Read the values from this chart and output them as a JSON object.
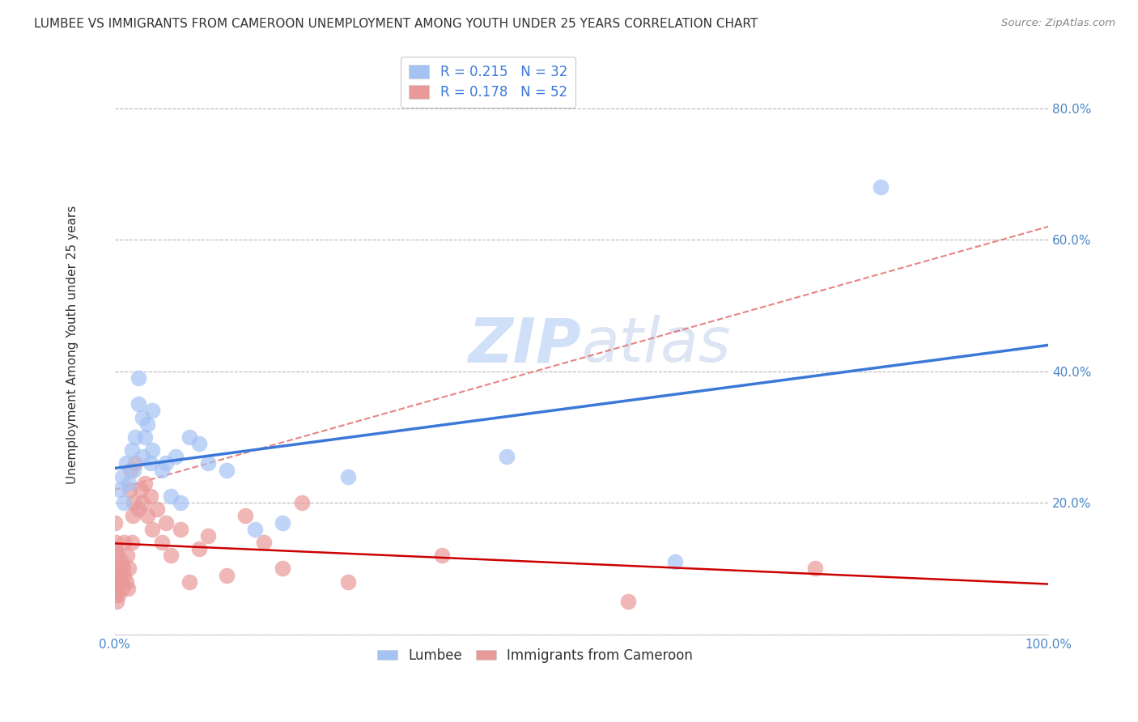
{
  "title": "LUMBEE VS IMMIGRANTS FROM CAMEROON UNEMPLOYMENT AMONG YOUTH UNDER 25 YEARS CORRELATION CHART",
  "source": "Source: ZipAtlas.com",
  "ylabel": "Unemployment Among Youth under 25 years",
  "xlim": [
    0,
    1.0
  ],
  "ylim": [
    0,
    0.88
  ],
  "yticks": [
    0.0,
    0.2,
    0.4,
    0.6,
    0.8
  ],
  "ytick_labels": [
    "",
    "20.0%",
    "40.0%",
    "60.0%",
    "80.0%"
  ],
  "xticks": [
    0.0,
    0.25,
    0.5,
    0.75,
    1.0
  ],
  "xtick_labels": [
    "0.0%",
    "",
    "",
    "",
    "100.0%"
  ],
  "lumbee_R": 0.215,
  "lumbee_N": 32,
  "cameroon_R": 0.178,
  "cameroon_N": 52,
  "lumbee_color": "#a4c2f4",
  "cameroon_color": "#ea9999",
  "lumbee_line_color": "#3c78d8",
  "cameroon_line_color": "#cc0000",
  "cameroon_dash_color": "#e06666",
  "watermark_color": "#c9daf8",
  "background_color": "#ffffff",
  "grid_color": "#b7b7b7",
  "title_fontsize": 11,
  "axis_label_fontsize": 11,
  "tick_fontsize": 11,
  "legend_fontsize": 12,
  "lumbee_x": [
    0.005,
    0.008,
    0.01,
    0.012,
    0.015,
    0.018,
    0.02,
    0.022,
    0.025,
    0.025,
    0.03,
    0.03,
    0.032,
    0.035,
    0.038,
    0.04,
    0.04,
    0.05,
    0.055,
    0.06,
    0.065,
    0.07,
    0.08,
    0.09,
    0.1,
    0.12,
    0.15,
    0.18,
    0.25,
    0.42,
    0.6,
    0.82
  ],
  "lumbee_y": [
    0.22,
    0.24,
    0.2,
    0.26,
    0.23,
    0.28,
    0.25,
    0.3,
    0.35,
    0.39,
    0.27,
    0.33,
    0.3,
    0.32,
    0.26,
    0.28,
    0.34,
    0.25,
    0.26,
    0.21,
    0.27,
    0.2,
    0.3,
    0.29,
    0.26,
    0.25,
    0.16,
    0.17,
    0.24,
    0.27,
    0.11,
    0.68
  ],
  "cameroon_x": [
    0.0,
    0.0,
    0.0,
    0.0,
    0.001,
    0.001,
    0.002,
    0.002,
    0.003,
    0.003,
    0.004,
    0.005,
    0.006,
    0.007,
    0.008,
    0.009,
    0.01,
    0.01,
    0.012,
    0.013,
    0.014,
    0.015,
    0.016,
    0.017,
    0.018,
    0.019,
    0.02,
    0.022,
    0.025,
    0.028,
    0.03,
    0.032,
    0.035,
    0.038,
    0.04,
    0.045,
    0.05,
    0.055,
    0.06,
    0.07,
    0.08,
    0.09,
    0.1,
    0.12,
    0.14,
    0.16,
    0.18,
    0.2,
    0.25,
    0.35,
    0.55,
    0.75
  ],
  "cameroon_y": [
    0.06,
    0.1,
    0.13,
    0.17,
    0.08,
    0.14,
    0.05,
    0.09,
    0.07,
    0.12,
    0.06,
    0.09,
    0.08,
    0.11,
    0.07,
    0.1,
    0.09,
    0.14,
    0.08,
    0.12,
    0.07,
    0.1,
    0.22,
    0.25,
    0.14,
    0.18,
    0.2,
    0.26,
    0.19,
    0.22,
    0.2,
    0.23,
    0.18,
    0.21,
    0.16,
    0.19,
    0.14,
    0.17,
    0.12,
    0.16,
    0.08,
    0.13,
    0.15,
    0.09,
    0.18,
    0.14,
    0.1,
    0.2,
    0.08,
    0.12,
    0.05,
    0.1
  ]
}
